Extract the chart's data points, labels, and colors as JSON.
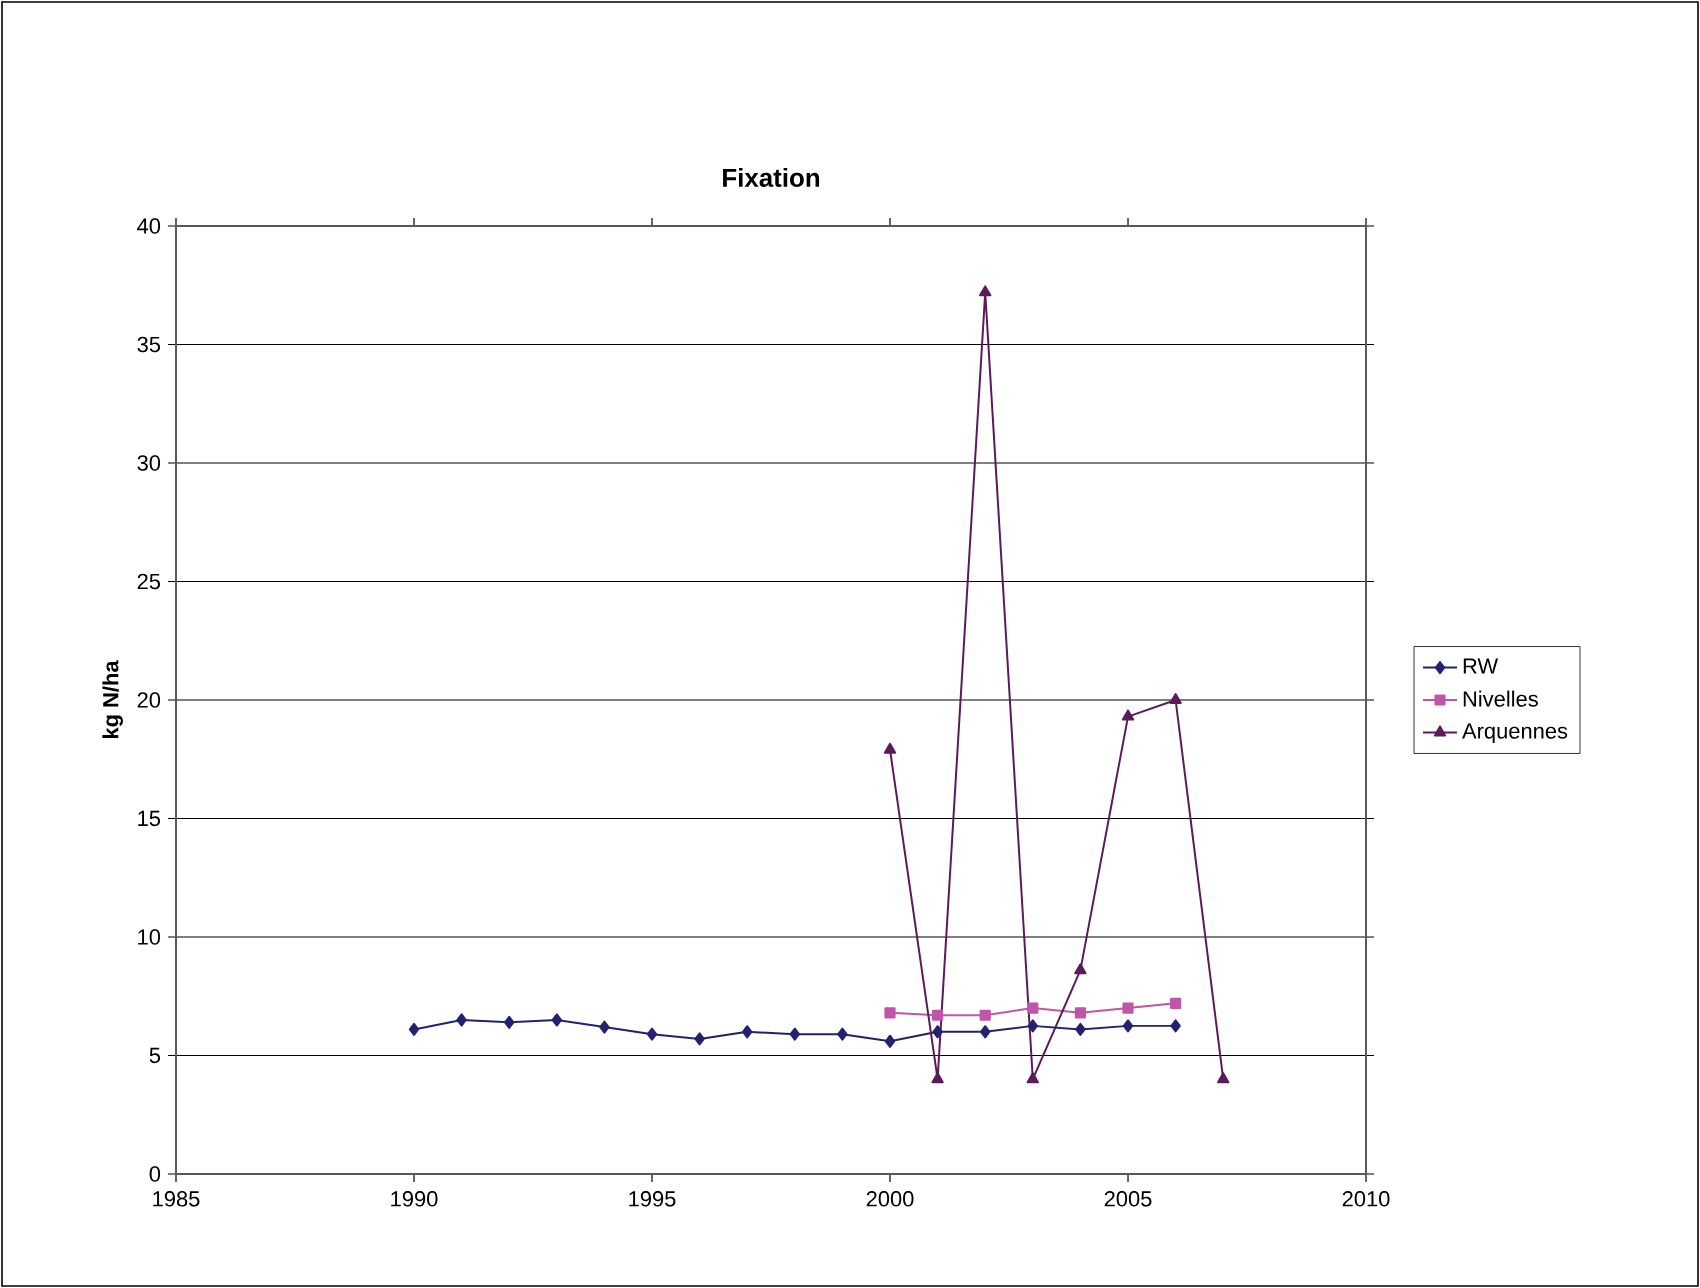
{
  "chart_data": {
    "type": "line",
    "title": "Fixation",
    "ylabel": "kg N/ha",
    "xlim": [
      1985,
      2010
    ],
    "xticks": [
      1985,
      1990,
      1995,
      2000,
      2005,
      2010
    ],
    "ylim": [
      0,
      40
    ],
    "yticks": [
      0,
      5,
      10,
      15,
      20,
      25,
      30,
      35,
      40
    ],
    "grid": "y",
    "legend": "right",
    "series": [
      {
        "name": "RW",
        "color": "#22226e",
        "marker": "diamond",
        "x": [
          1990,
          1991,
          1992,
          1993,
          1994,
          1995,
          1996,
          1997,
          1998,
          1999,
          2000,
          2001,
          2002,
          2003,
          2004,
          2005,
          2006
        ],
        "values": [
          6.1,
          6.5,
          6.4,
          6.5,
          6.2,
          5.9,
          5.7,
          6.0,
          5.9,
          5.9,
          5.6,
          6.0,
          6.0,
          6.25,
          6.1,
          6.25,
          6.25
        ]
      },
      {
        "name": "Nivelles",
        "color": "#c055aa",
        "marker": "square",
        "x": [
          2000,
          2001,
          2002,
          2003,
          2004,
          2005,
          2006
        ],
        "values": [
          6.8,
          6.7,
          6.7,
          7.0,
          6.8,
          7.0,
          7.2
        ]
      },
      {
        "name": "Arquennes",
        "color": "#5c1a5c",
        "marker": "triangle",
        "x": [
          2000,
          2001,
          2002,
          2003,
          2004,
          2005,
          2006,
          2007
        ],
        "values": [
          17.9,
          4.0,
          37.2,
          4.0,
          8.6,
          19.3,
          20.0,
          4.0
        ]
      }
    ]
  }
}
